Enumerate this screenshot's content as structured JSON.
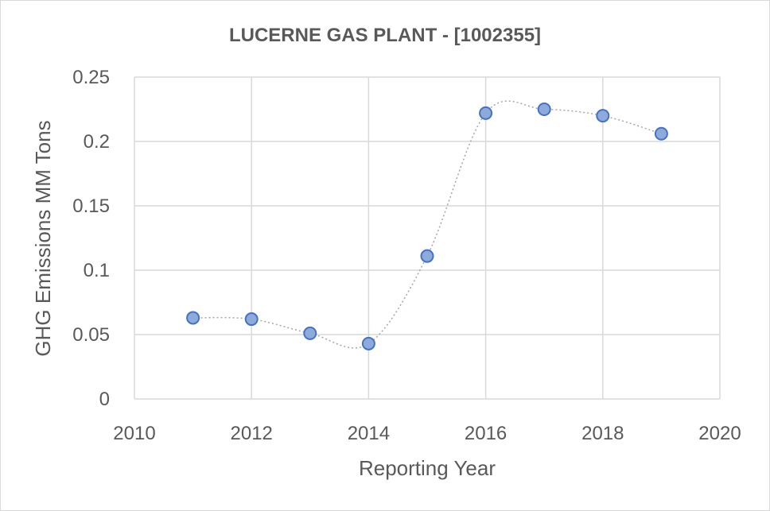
{
  "chart_data": {
    "type": "scatter",
    "title": "LUCERNE GAS PLANT - [1002355]",
    "xlabel": "Reporting Year",
    "ylabel": "GHG Emissions MM Tons",
    "xlim": [
      2010,
      2020
    ],
    "ylim": [
      0,
      0.25
    ],
    "x_ticks": [
      "2010",
      "2012",
      "2014",
      "2016",
      "2018",
      "2020"
    ],
    "y_ticks": [
      "0",
      "0.05",
      "0.1",
      "0.15",
      "0.2",
      "0.25"
    ],
    "grid": true,
    "smooth_line": true,
    "marker_color": "#8eaadb",
    "marker_edge_color": "#4472c4",
    "line_color": "#a6a6a6",
    "series": [
      {
        "x": [
          2011,
          2012,
          2013,
          2014,
          2015,
          2016,
          2017,
          2018,
          2019
        ],
        "y": [
          0.063,
          0.062,
          0.051,
          0.043,
          0.111,
          0.222,
          0.225,
          0.22,
          0.206
        ]
      }
    ]
  }
}
